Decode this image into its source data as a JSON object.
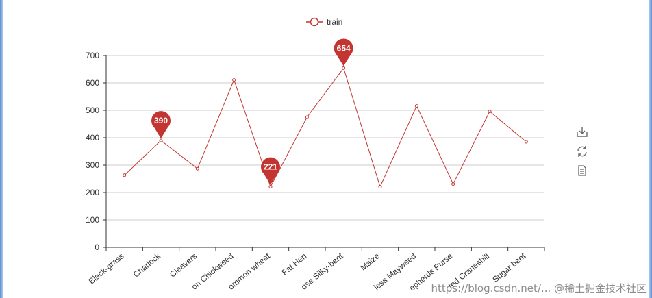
{
  "chart_data": {
    "type": "line",
    "categories": [
      "Black-grass",
      "Charlock",
      "Cleavers",
      "Common Chickweed",
      "Common wheat",
      "Fat Hen",
      "Loose Silky-bent",
      "Maize",
      "Scentless Mayweed",
      "Shepherds Purse",
      "Small-flowered Cranesbill",
      "Sugar beet"
    ],
    "visible_category_labels": [
      "Black-grass",
      "Charlock",
      "Cleavers",
      "on Chickweed",
      "ommon wheat",
      "Fat Hen",
      "ose Silky-bent",
      "Maize",
      "less Mayweed",
      "epherds Purse",
      "ted Cranesbill",
      "Sugar beet"
    ],
    "series": [
      {
        "name": "train",
        "values": [
          263,
          390,
          287,
          611,
          221,
          475,
          654,
          221,
          516,
          231,
          496,
          385
        ],
        "color": "#c23531",
        "mark_points": [
          {
            "label": "390",
            "index": 1
          },
          {
            "label": "221",
            "index": 4
          },
          {
            "label": "654",
            "index": 6
          }
        ]
      }
    ],
    "ylim": [
      0,
      700
    ],
    "yticks": [
      "0",
      "100",
      "200",
      "300",
      "400",
      "500",
      "600",
      "700"
    ],
    "grid": true,
    "legend_position": "top-center",
    "title": "",
    "xlabel": "",
    "ylabel": ""
  },
  "toolbox": {
    "items": [
      {
        "icon": "download-icon"
      },
      {
        "icon": "refresh-icon"
      },
      {
        "icon": "data-view-icon"
      }
    ]
  },
  "watermark": "https://blog.csdn.net/... @稀土掘金技术社区"
}
